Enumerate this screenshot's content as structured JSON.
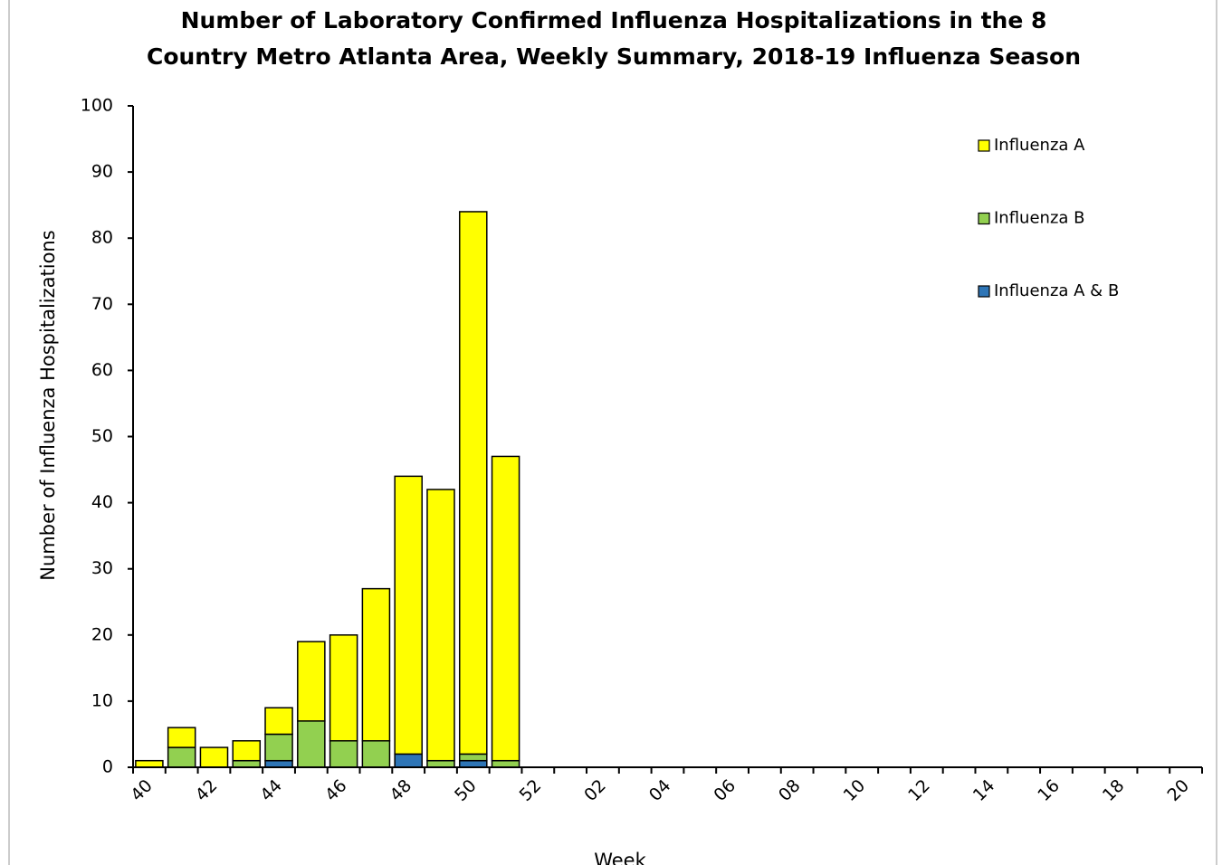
{
  "chart_data": {
    "type": "stacked-bar",
    "title": [
      "Number of Laboratory Confirmed Influenza Hospitalizations in the 8",
      "Country Metro Atlanta Area, Weekly Summary, 2018-19 Influenza Season"
    ],
    "x_label": "Week",
    "y_label": "Number of Influenza Hospitalizations",
    "categories": [
      "40",
      null,
      "42",
      null,
      "44",
      null,
      "46",
      null,
      "48",
      null,
      "50",
      null,
      "52",
      null,
      "02",
      null,
      "04",
      null,
      "06",
      null,
      "08",
      null,
      "10",
      null,
      "12",
      null,
      "14",
      null,
      "16",
      null,
      "18",
      null,
      "20"
    ],
    "series": [
      {
        "name": "Influenza A",
        "color": "#ffff00",
        "values": [
          1,
          3,
          3,
          3,
          4,
          12,
          16,
          23,
          42,
          41,
          82,
          46,
          null,
          null,
          null,
          null,
          null,
          null,
          null,
          null,
          null,
          null,
          null,
          null,
          null,
          null,
          null,
          null,
          null,
          null,
          null,
          null,
          null
        ]
      },
      {
        "name": "Influenza B",
        "color": "#92d050",
        "values": [
          0,
          3,
          0,
          1,
          4,
          7,
          4,
          4,
          0,
          1,
          1,
          1,
          null,
          null,
          null,
          null,
          null,
          null,
          null,
          null,
          null,
          null,
          null,
          null,
          null,
          null,
          null,
          null,
          null,
          null,
          null,
          null,
          null
        ]
      },
      {
        "name": "Influenza A & B",
        "color": "#2e75b6",
        "values": [
          0,
          0,
          0,
          0,
          1,
          0,
          0,
          0,
          2,
          0,
          1,
          0,
          null,
          null,
          null,
          null,
          null,
          null,
          null,
          null,
          null,
          null,
          null,
          null,
          null,
          null,
          null,
          null,
          null,
          null,
          null,
          null,
          null
        ]
      }
    ],
    "ylim": [
      0,
      100
    ],
    "yticks": [
      0,
      10,
      20,
      30,
      40,
      50,
      60,
      70,
      80,
      90,
      100
    ],
    "legend": "top-right"
  }
}
